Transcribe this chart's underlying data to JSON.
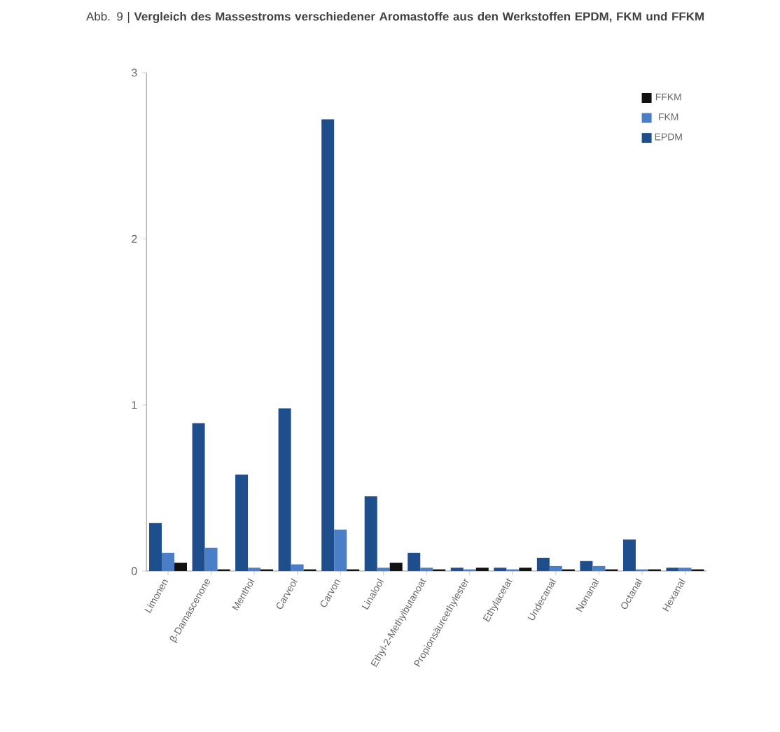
{
  "chart_data": {
    "type": "bar",
    "title": "Abb. 9 | **Vergleich des Massestroms verschiedener Aromastoffe aus den Werkstoffen EPDM, FKM und FFKM**",
    "categories": [
      "Limonen",
      "β-Damascenone",
      "Menthol",
      "Carveol",
      "Carvon",
      "Linalool",
      "Ethyl-2-Methylbutanoat",
      "Propionsäureethylester",
      "Ethylacetat",
      "Undecanal",
      "Nonanal",
      "Octanal",
      "Hexanal"
    ],
    "series": [
      {
        "name": "EPDM",
        "color": "#1f4e8c",
        "values": [
          0.29,
          0.89,
          0.58,
          0.98,
          2.72,
          0.45,
          0.11,
          0.02,
          0.02,
          0.08,
          0.06,
          0.19,
          0.02
        ]
      },
      {
        "name": "FKM",
        "color": "#4a7fc8",
        "values": [
          0.11,
          0.14,
          0.02,
          0.04,
          0.25,
          0.02,
          0.02,
          0.01,
          0.01,
          0.03,
          0.03,
          0.01,
          0.02
        ]
      },
      {
        "name": "FFKM",
        "color": "#111111",
        "values": [
          0.05,
          0.01,
          0.01,
          0.01,
          0.01,
          0.05,
          0.01,
          0.02,
          0.02,
          0.01,
          0.01,
          0.01,
          0.01
        ]
      }
    ],
    "ylim": [
      0,
      3
    ],
    "yticks": [
      0,
      1,
      2,
      3
    ],
    "legend": "top right"
  }
}
